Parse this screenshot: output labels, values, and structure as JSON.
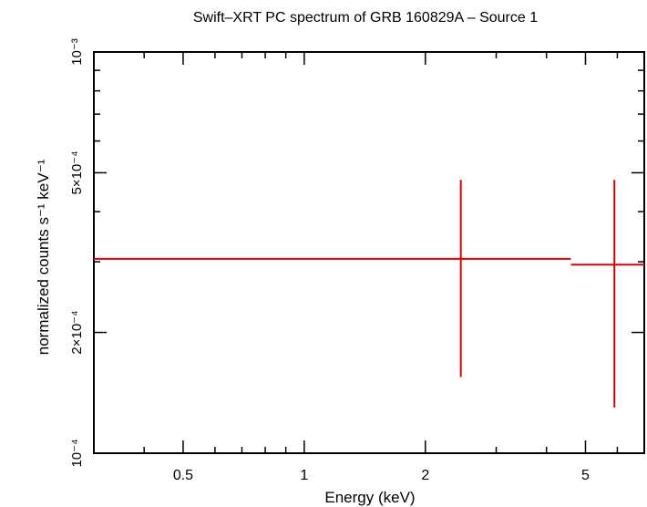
{
  "chart_data": {
    "type": "scatter",
    "title": "Swift–XRT PC spectrum of GRB 160829A – Source 1",
    "xlabel": "Energy (keV)",
    "ylabel": "normalized counts s⁻¹ keV⁻¹",
    "x_scale": "log",
    "y_scale": "log",
    "xlim": [
      0.3,
      7.0
    ],
    "ylim": [
      0.0001,
      0.001
    ],
    "x_ticks": [
      {
        "value": 0.5,
        "label": "0.5"
      },
      {
        "value": 1,
        "label": "1"
      },
      {
        "value": 2,
        "label": "2"
      },
      {
        "value": 5,
        "label": "5"
      }
    ],
    "y_ticks": [
      {
        "value": 0.0001,
        "label": "10⁻⁴"
      },
      {
        "value": 0.0002,
        "label": "2×10⁻⁴"
      },
      {
        "value": 0.0005,
        "label": "5×10⁻⁴"
      },
      {
        "value": 0.001,
        "label": "10⁻³"
      }
    ],
    "series": [
      {
        "color": "#e00000",
        "points": [
          {
            "x": 2.45,
            "x_low": 0.3,
            "x_high": 4.6,
            "y": 0.000305,
            "y_low": 0.000155,
            "y_high": 0.00048
          },
          {
            "x": 5.9,
            "x_low": 4.6,
            "x_high": 7.0,
            "y": 0.000295,
            "y_low": 0.00013,
            "y_high": 0.00048
          }
        ]
      }
    ]
  }
}
